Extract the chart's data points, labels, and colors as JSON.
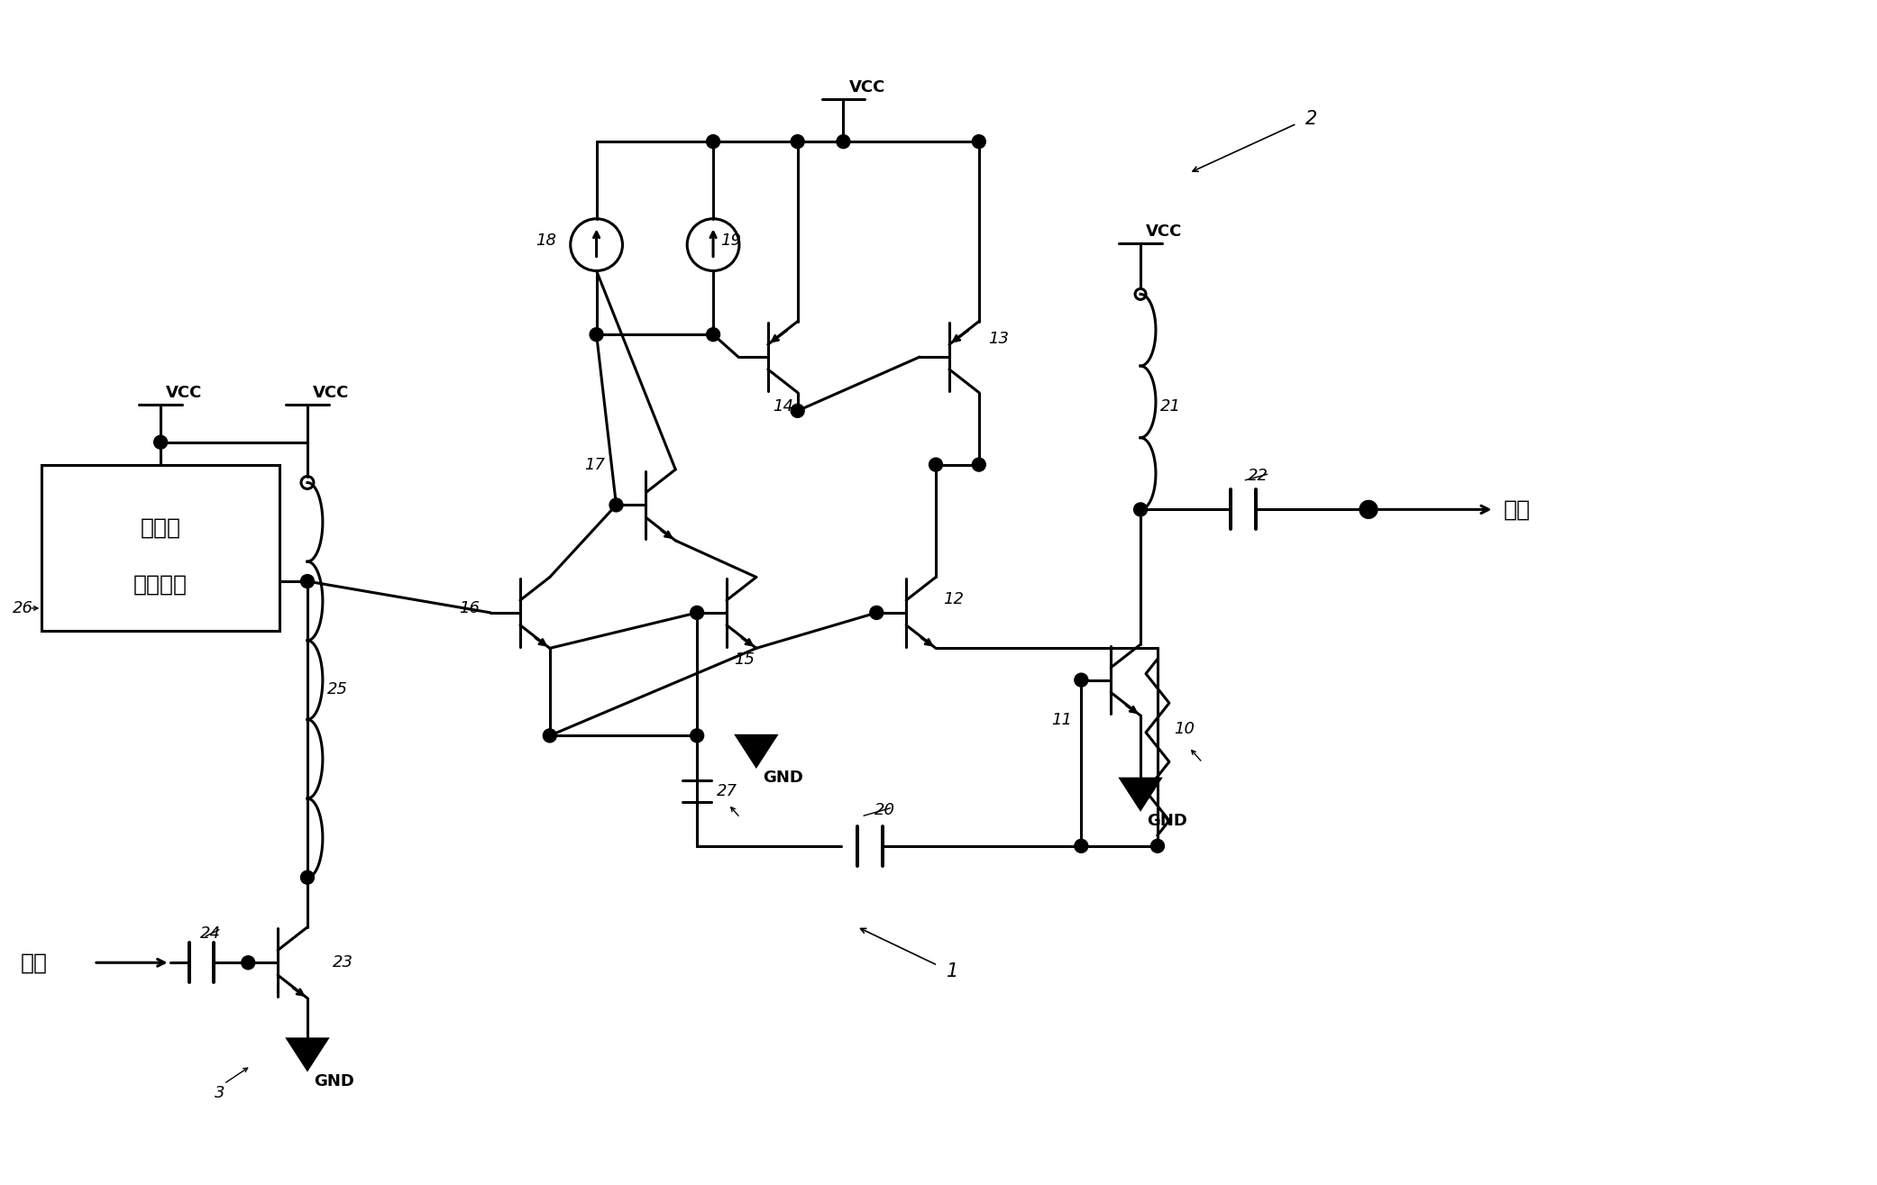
{
  "bg_color": "#ffffff",
  "line_color": "#000000",
  "line_width": 2.2,
  "fs_label": 13,
  "fs_text": 18,
  "fs_ref": 13,
  "vcc_label": "VCC",
  "gnd_label": "GND",
  "input_label": "输入",
  "output_label": "输出",
  "box_line1": "驱动器",
  "box_line2": "偏置电路",
  "refs": {
    "T11": "11",
    "T12": "12",
    "T13": "13",
    "T14": "14",
    "T15": "15",
    "T16": "16",
    "T17": "17",
    "T23": "23",
    "CS18": "18",
    "CS19": "19",
    "C20": "20",
    "C22": "22",
    "C24": "24",
    "L21": "21",
    "L25": "25",
    "R10": "10",
    "SW27": "27",
    "circ1": "1",
    "circ2": "2",
    "node26": "26",
    "node3": "3"
  }
}
